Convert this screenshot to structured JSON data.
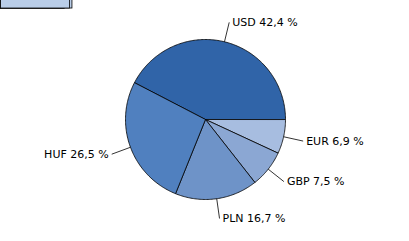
{
  "chart_data": {
    "type": "pie",
    "categories": [
      "USD",
      "EUR",
      "GBP",
      "PLN",
      "HUF"
    ],
    "values": [
      42.4,
      6.9,
      7.5,
      16.7,
      26.5
    ],
    "value_labels": [
      "USD 42,4 %",
      "EUR 6,9 %",
      "GBP 7,5 %",
      "PLN 16,7 %",
      "HUF 26,5 %"
    ],
    "colors": [
      "#3064a8",
      "#a7bde0",
      "#8ba7d3",
      "#6e93c8",
      "#5080bf"
    ],
    "data_labels": true
  }
}
